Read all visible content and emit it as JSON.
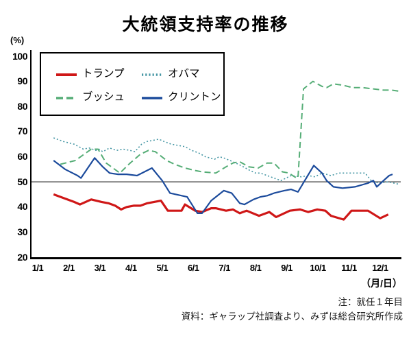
{
  "title": "大統領支持率の推移",
  "y_axis": {
    "unit_label": "(%)",
    "ticks": [
      100,
      90,
      80,
      70,
      60,
      50,
      40,
      30,
      20
    ],
    "min": 20,
    "max": 100,
    "reference_line": 50
  },
  "x_axis": {
    "ticks": [
      "1/1",
      "2/1",
      "3/1",
      "4/1",
      "5/1",
      "6/1",
      "7/1",
      "8/1",
      "9/1",
      "10/1",
      "11/1",
      "12/1"
    ],
    "unit_label": "（月/日）"
  },
  "notes": {
    "line1": "注：就任１年目",
    "line2": "資料：ギャラップ社調査より、みずほ総合研究所作成"
  },
  "chart_data": {
    "type": "line",
    "title": "大統領支持率の推移",
    "ylabel": "(%)",
    "xlabel": "（月/日）",
    "ylim": [
      20,
      100
    ],
    "grid": false,
    "reference_line_y": 50,
    "legend_position": "top-left-box",
    "x_format": "month (1 = Jan 1, first year in office)",
    "series": [
      {
        "key": "obama",
        "name": "オバマ",
        "color": "#4596a4",
        "dash": "dotted",
        "points": [
          [
            1.51,
            67.5
          ],
          [
            1.84,
            66
          ],
          [
            2.17,
            65
          ],
          [
            2.47,
            63
          ],
          [
            2.65,
            63.5
          ],
          [
            2.87,
            62.5
          ],
          [
            2.98,
            63
          ],
          [
            3.09,
            62
          ],
          [
            3.31,
            63.5
          ],
          [
            3.53,
            62.5
          ],
          [
            3.75,
            63
          ],
          [
            3.97,
            62.5
          ],
          [
            4.12,
            62
          ],
          [
            4.34,
            65
          ],
          [
            4.48,
            66
          ],
          [
            4.7,
            66.5
          ],
          [
            4.89,
            67
          ],
          [
            5.07,
            66
          ],
          [
            5.29,
            65
          ],
          [
            5.51,
            64.5
          ],
          [
            5.73,
            64
          ],
          [
            5.95,
            62.5
          ],
          [
            6.17,
            61.5
          ],
          [
            6.39,
            60
          ],
          [
            6.68,
            59
          ],
          [
            6.83,
            60
          ],
          [
            6.98,
            59.5
          ],
          [
            7.27,
            58
          ],
          [
            7.53,
            56.5
          ],
          [
            7.82,
            54.5
          ],
          [
            8.0,
            53.5
          ],
          [
            8.15,
            53.5
          ],
          [
            8.37,
            52.5
          ],
          [
            8.59,
            51.5
          ],
          [
            8.81,
            50.5
          ],
          [
            9.14,
            52.5
          ],
          [
            9.47,
            52
          ],
          [
            9.69,
            52.5
          ],
          [
            9.91,
            52
          ],
          [
            10.13,
            53.5
          ],
          [
            10.42,
            52.5
          ],
          [
            10.68,
            53.5
          ],
          [
            11.23,
            53.5
          ],
          [
            11.52,
            53.5
          ],
          [
            11.71,
            50.5
          ],
          [
            11.96,
            49.5
          ],
          [
            12.26,
            50
          ],
          [
            12.62,
            49
          ]
        ]
      },
      {
        "key": "bush",
        "name": "ブッシュ",
        "color": "#55ad76",
        "dash": "dashed",
        "points": [
          [
            1.73,
            57
          ],
          [
            2.21,
            58.5
          ],
          [
            2.72,
            63
          ],
          [
            2.94,
            63
          ],
          [
            3.2,
            57.5
          ],
          [
            3.42,
            55.5
          ],
          [
            3.64,
            53.5
          ],
          [
            3.97,
            57.5
          ],
          [
            4.3,
            61
          ],
          [
            4.56,
            62.5
          ],
          [
            4.78,
            62
          ],
          [
            5.14,
            58.5
          ],
          [
            5.4,
            57
          ],
          [
            5.73,
            55.5
          ],
          [
            6.06,
            54.5
          ],
          [
            6.28,
            54
          ],
          [
            6.72,
            53.5
          ],
          [
            7.05,
            56
          ],
          [
            7.27,
            57.5
          ],
          [
            7.49,
            58
          ],
          [
            7.78,
            56
          ],
          [
            8.08,
            55.5
          ],
          [
            8.37,
            57.5
          ],
          [
            8.59,
            57.5
          ],
          [
            8.86,
            54
          ],
          [
            9.07,
            53.5
          ],
          [
            9.25,
            52
          ],
          [
            9.36,
            51.5
          ],
          [
            9.54,
            87
          ],
          [
            9.84,
            90
          ],
          [
            10.13,
            88
          ],
          [
            10.28,
            87.5
          ],
          [
            10.5,
            89
          ],
          [
            10.79,
            88.5
          ],
          [
            11.12,
            87.5
          ],
          [
            11.45,
            87.5
          ],
          [
            11.78,
            87
          ],
          [
            12.11,
            86.5
          ],
          [
            12.37,
            86.5
          ],
          [
            12.66,
            86
          ]
        ]
      },
      {
        "key": "trump",
        "name": "トランプ",
        "color": "#cf1717",
        "dash": "solid-thick",
        "points": [
          [
            1.51,
            45
          ],
          [
            1.84,
            43.5
          ],
          [
            2.17,
            42
          ],
          [
            2.36,
            41
          ],
          [
            2.72,
            43
          ],
          [
            3.05,
            42
          ],
          [
            3.27,
            41.5
          ],
          [
            3.49,
            40.5
          ],
          [
            3.68,
            39
          ],
          [
            3.86,
            40
          ],
          [
            4.08,
            40.5
          ],
          [
            4.3,
            40.5
          ],
          [
            4.52,
            41.5
          ],
          [
            4.74,
            42
          ],
          [
            4.96,
            42.5
          ],
          [
            5.18,
            38.5
          ],
          [
            5.4,
            38.5
          ],
          [
            5.62,
            38.5
          ],
          [
            5.73,
            41
          ],
          [
            6.06,
            38.5
          ],
          [
            6.28,
            38
          ],
          [
            6.57,
            39.5
          ],
          [
            6.72,
            39.5
          ],
          [
            7.05,
            38.5
          ],
          [
            7.27,
            39
          ],
          [
            7.49,
            37.5
          ],
          [
            7.71,
            38.5
          ],
          [
            8.11,
            36.5
          ],
          [
            8.44,
            38
          ],
          [
            8.66,
            36
          ],
          [
            9.1,
            38.5
          ],
          [
            9.43,
            39
          ],
          [
            9.69,
            38
          ],
          [
            9.98,
            39
          ],
          [
            10.24,
            38.5
          ],
          [
            10.42,
            36.5
          ],
          [
            10.83,
            35
          ],
          [
            11.08,
            38.5
          ],
          [
            11.61,
            38.5
          ],
          [
            12.0,
            35.5
          ],
          [
            12.26,
            37
          ]
        ]
      },
      {
        "key": "clinton",
        "name": "クリントン",
        "color": "#1c4b9c",
        "dash": "solid",
        "points": [
          [
            1.51,
            58.5
          ],
          [
            1.88,
            55
          ],
          [
            2.28,
            52.5
          ],
          [
            2.39,
            51.5
          ],
          [
            2.83,
            59.5
          ],
          [
            3.09,
            56
          ],
          [
            3.31,
            53.5
          ],
          [
            3.57,
            53
          ],
          [
            3.86,
            53
          ],
          [
            4.19,
            52.5
          ],
          [
            4.67,
            55.5
          ],
          [
            5.0,
            50.5
          ],
          [
            5.25,
            45.5
          ],
          [
            5.44,
            45
          ],
          [
            5.8,
            44
          ],
          [
            6.13,
            37.5
          ],
          [
            6.28,
            37.5
          ],
          [
            6.57,
            42.5
          ],
          [
            6.98,
            46.5
          ],
          [
            7.23,
            45.5
          ],
          [
            7.49,
            41.5
          ],
          [
            7.64,
            41
          ],
          [
            7.93,
            43
          ],
          [
            8.15,
            44
          ],
          [
            8.37,
            44.5
          ],
          [
            8.59,
            45.5
          ],
          [
            8.92,
            46.5
          ],
          [
            9.14,
            47
          ],
          [
            9.36,
            46
          ],
          [
            9.87,
            56.5
          ],
          [
            10.13,
            53.5
          ],
          [
            10.28,
            50.5
          ],
          [
            10.5,
            48
          ],
          [
            10.79,
            47.5
          ],
          [
            11.19,
            48
          ],
          [
            11.61,
            49.5
          ],
          [
            11.78,
            50.5
          ],
          [
            11.89,
            48
          ],
          [
            12.11,
            50.5
          ],
          [
            12.29,
            52.5
          ],
          [
            12.4,
            53
          ]
        ]
      }
    ],
    "legend_order": [
      "trump",
      "obama",
      "bush",
      "clinton"
    ]
  },
  "layout_colors": {
    "axis": "#000000",
    "reference_line": "#3a3a3a"
  }
}
